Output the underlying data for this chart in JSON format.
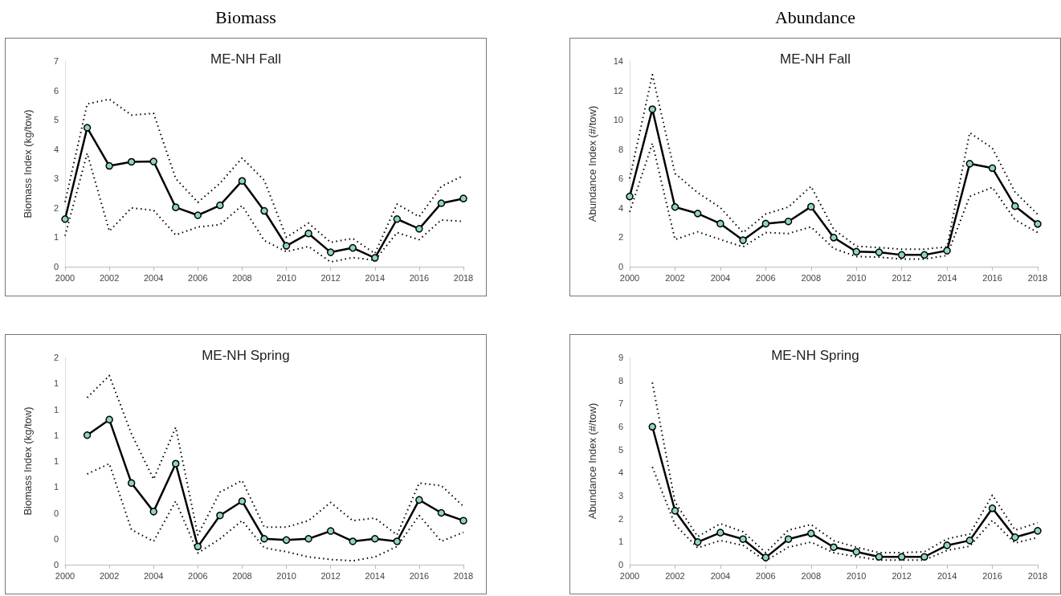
{
  "chart_data": [
    {
      "type": "line",
      "title": "ME-NH Fall",
      "annotations": [
        "Biomass"
      ],
      "ylabel": "Biomass Index (kg/tow)",
      "x": [
        2000,
        2001,
        2002,
        2003,
        2004,
        2005,
        2006,
        2007,
        2008,
        2009,
        2010,
        2011,
        2012,
        2013,
        2014,
        2015,
        2016,
        2017,
        2018
      ],
      "xlim": [
        2000,
        2018
      ],
      "xticks": [
        2000,
        2002,
        2004,
        2006,
        2008,
        2010,
        2012,
        2014,
        2016,
        2018
      ],
      "ylim": [
        0,
        7
      ],
      "yticks": [
        0,
        1,
        2,
        3,
        4,
        5,
        6,
        7
      ],
      "series": [
        {
          "color": "#000000",
          "line_style": "dotted",
          "marker": "none",
          "values": [
            2.2,
            5.54,
            5.7,
            5.16,
            5.22,
            3.0,
            2.19,
            2.84,
            3.7,
            2.94,
            1.0,
            1.48,
            0.83,
            0.96,
            0.45,
            2.13,
            1.7,
            2.73,
            3.1
          ]
        },
        {
          "color": "#000000",
          "line_style": "dotted",
          "marker": "none",
          "values": [
            1.05,
            3.86,
            1.21,
            2.0,
            1.92,
            1.08,
            1.35,
            1.43,
            2.08,
            0.89,
            0.51,
            0.69,
            0.16,
            0.31,
            0.22,
            1.16,
            0.92,
            1.59,
            1.54
          ]
        },
        {
          "color": "#000000",
          "line_style": "solid",
          "marker": "circle",
          "values": [
            1.62,
            4.73,
            3.43,
            3.57,
            3.58,
            2.02,
            1.75,
            2.09,
            2.92,
            1.9,
            0.71,
            1.13,
            0.49,
            0.64,
            0.3,
            1.62,
            1.29,
            2.16,
            2.32
          ]
        }
      ]
    },
    {
      "type": "line",
      "title": "ME-NH Fall",
      "annotations": [
        "Abundance"
      ],
      "ylabel": "Abundance Index (#/tow)",
      "x": [
        2000,
        2001,
        2002,
        2003,
        2004,
        2005,
        2006,
        2007,
        2008,
        2009,
        2010,
        2011,
        2012,
        2013,
        2014,
        2015,
        2016,
        2017,
        2018
      ],
      "xlim": [
        2000,
        2018
      ],
      "xticks": [
        2000,
        2002,
        2004,
        2006,
        2008,
        2010,
        2012,
        2014,
        2016,
        2018
      ],
      "ylim": [
        0,
        14
      ],
      "yticks": [
        0,
        2,
        4,
        6,
        8,
        10,
        12,
        14
      ],
      "series": [
        {
          "color": "#000000",
          "line_style": "dotted",
          "marker": "none",
          "values": [
            6.0,
            13.07,
            6.34,
            5.04,
            4.02,
            2.32,
            3.58,
            4.06,
            5.47,
            2.54,
            1.39,
            1.3,
            1.19,
            1.19,
            1.35,
            9.12,
            8.07,
            5.08,
            3.56
          ]
        },
        {
          "color": "#000000",
          "line_style": "dotted",
          "marker": "none",
          "values": [
            3.73,
            8.4,
            1.85,
            2.37,
            1.85,
            1.35,
            2.32,
            2.26,
            2.71,
            1.24,
            0.69,
            0.65,
            0.52,
            0.52,
            0.76,
            4.78,
            5.4,
            3.19,
            2.32
          ]
        },
        {
          "color": "#000000",
          "line_style": "solid",
          "marker": "circle",
          "values": [
            4.78,
            10.72,
            4.06,
            3.62,
            2.93,
            1.8,
            2.93,
            3.08,
            4.08,
            1.98,
            1.02,
            0.98,
            0.8,
            0.8,
            1.09,
            7.01,
            6.71,
            4.12,
            2.91
          ]
        }
      ]
    },
    {
      "type": "line",
      "title": "ME-NH Spring",
      "ylabel": "Biomass Index (kg/tow)",
      "x": [
        2001,
        2002,
        2003,
        2004,
        2005,
        2006,
        2007,
        2008,
        2009,
        2010,
        2011,
        2012,
        2013,
        2014,
        2015,
        2016,
        2017,
        2018
      ],
      "xlim": [
        2000,
        2018
      ],
      "xticks": [
        2000,
        2002,
        2004,
        2006,
        2008,
        2010,
        2012,
        2014,
        2016,
        2018
      ],
      "ylim": [
        0,
        1.6
      ],
      "yticks": [
        0,
        {
          "value": 0.2,
          "label": "0"
        },
        {
          "value": 0.4,
          "label": "0"
        },
        {
          "value": 0.6,
          "label": "1"
        },
        {
          "value": 0.8,
          "label": "1"
        },
        1,
        {
          "value": 1.2,
          "label": "1"
        },
        {
          "value": 1.4,
          "label": "1"
        },
        {
          "value": 1.6,
          "label": "2"
        }
      ],
      "series": [
        {
          "color": "#000000",
          "line_style": "dotted",
          "marker": "none",
          "values": [
            1.29,
            1.46,
            1.01,
            0.66,
            1.06,
            0.23,
            0.56,
            0.65,
            0.29,
            0.29,
            0.34,
            0.48,
            0.34,
            0.36,
            0.23,
            0.63,
            0.61,
            0.45
          ]
        },
        {
          "color": "#000000",
          "line_style": "dotted",
          "marker": "none",
          "values": [
            0.7,
            0.78,
            0.27,
            0.18,
            0.49,
            0.09,
            0.2,
            0.34,
            0.13,
            0.1,
            0.06,
            0.04,
            0.03,
            0.06,
            0.14,
            0.38,
            0.18,
            0.25
          ]
        },
        {
          "color": "#000000",
          "line_style": "solid",
          "marker": "circle",
          "values": [
            1.0,
            1.12,
            0.63,
            0.41,
            0.78,
            0.14,
            0.38,
            0.49,
            0.2,
            0.19,
            0.2,
            0.26,
            0.18,
            0.2,
            0.18,
            0.5,
            0.4,
            0.34
          ]
        }
      ]
    },
    {
      "type": "line",
      "title": "ME-NH Spring",
      "ylabel": "Abundance Index (#/tow)",
      "x": [
        2001,
        2002,
        2003,
        2004,
        2005,
        2006,
        2007,
        2008,
        2009,
        2010,
        2011,
        2012,
        2013,
        2014,
        2015,
        2016,
        2017,
        2018
      ],
      "xlim": [
        2000,
        2018
      ],
      "xticks": [
        2000,
        2002,
        2004,
        2006,
        2008,
        2010,
        2012,
        2014,
        2016,
        2018
      ],
      "ylim": [
        0,
        9
      ],
      "yticks": [
        0,
        1,
        2,
        3,
        4,
        5,
        6,
        7,
        8,
        9
      ],
      "series": [
        {
          "color": "#000000",
          "line_style": "dotted",
          "marker": "none",
          "values": [
            7.91,
            2.72,
            1.22,
            1.78,
            1.43,
            0.52,
            1.5,
            1.74,
            1.04,
            0.76,
            0.52,
            0.52,
            0.56,
            1.12,
            1.33,
            3.02,
            1.5,
            1.82
          ]
        },
        {
          "color": "#000000",
          "line_style": "dotted",
          "marker": "none",
          "values": [
            4.24,
            1.74,
            0.73,
            1.05,
            0.84,
            0.17,
            0.76,
            0.98,
            0.52,
            0.35,
            0.2,
            0.2,
            0.2,
            0.62,
            0.8,
            1.92,
            0.94,
            1.18
          ]
        },
        {
          "color": "#000000",
          "line_style": "solid",
          "marker": "circle",
          "values": [
            5.99,
            2.34,
            0.98,
            1.39,
            1.11,
            0.31,
            1.11,
            1.36,
            0.76,
            0.56,
            0.34,
            0.34,
            0.34,
            0.84,
            1.05,
            2.45,
            1.19,
            1.47
          ]
        }
      ]
    }
  ]
}
